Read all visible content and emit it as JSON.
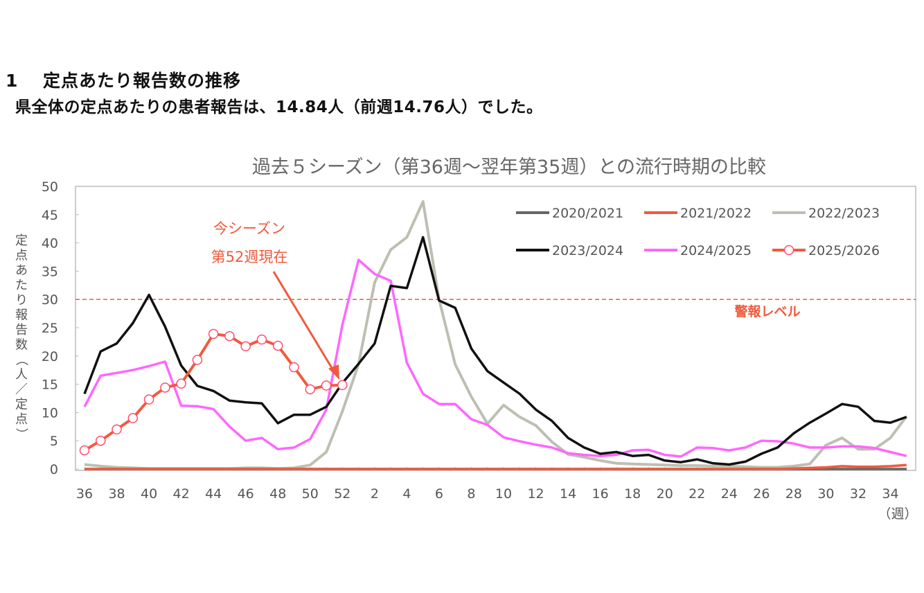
{
  "header": {
    "section_number": "1",
    "section_title": "定点あたり報告数の推移",
    "summary": "県全体の定点あたりの患者報告は、14.84人（前週14.76人）でした。"
  },
  "chart_data": {
    "type": "line",
    "title": "過去５シーズン（第36週～翌年第35週）との流行時期の比較",
    "ylabel": "定点あたり報告数（人／定点）",
    "xlabel": "（週）",
    "ylim": [
      0,
      50
    ],
    "yticks": [
      "0",
      "5",
      "10",
      "15",
      "20",
      "25",
      "30",
      "35",
      "40",
      "45",
      "50"
    ],
    "xticks": [
      "36",
      "38",
      "40",
      "42",
      "44",
      "46",
      "48",
      "50",
      "52",
      "2",
      "4",
      "6",
      "8",
      "10",
      "12",
      "14",
      "16",
      "18",
      "20",
      "22",
      "24",
      "26",
      "28",
      "30",
      "32",
      "34"
    ],
    "weeks": [
      36,
      37,
      38,
      39,
      40,
      41,
      42,
      43,
      44,
      45,
      46,
      47,
      48,
      49,
      50,
      51,
      52,
      1,
      2,
      3,
      4,
      5,
      6,
      7,
      8,
      9,
      10,
      11,
      12,
      13,
      14,
      15,
      16,
      17,
      18,
      19,
      20,
      21,
      22,
      23,
      24,
      25,
      26,
      27,
      28,
      29,
      30,
      31,
      32,
      33,
      34,
      35
    ],
    "grid": false,
    "legend_position": "top-right",
    "threshold": {
      "label": "警報レベル",
      "value": 30
    },
    "annotation": {
      "line1": "今シーズン",
      "line2": "第52週現在"
    },
    "series": [
      {
        "name": "2020/2021",
        "color": "#666666",
        "values": [
          0,
          0,
          0,
          0,
          0,
          0,
          0,
          0,
          0,
          0,
          0,
          0,
          0,
          0,
          0,
          0,
          0,
          0,
          0,
          0,
          0,
          0,
          0,
          0,
          0,
          0,
          0,
          0,
          0,
          0,
          0,
          0,
          0,
          0,
          0,
          0,
          0,
          0,
          0,
          0,
          0,
          0,
          0,
          0,
          0,
          0,
          0,
          0,
          0,
          0,
          0,
          0
        ]
      },
      {
        "name": "2021/2022",
        "color": "#f05a3c",
        "values": [
          0,
          0,
          0,
          0,
          0,
          0,
          0,
          0,
          0,
          0,
          0,
          0,
          0,
          0,
          0,
          0,
          0,
          0,
          0,
          0,
          0,
          0,
          0,
          0,
          0,
          0,
          0,
          0,
          0,
          0,
          0,
          0,
          0,
          0,
          0,
          0,
          0,
          0,
          0,
          0,
          0,
          0,
          0,
          0,
          0.1,
          0.2,
          0.3,
          0.5,
          0.4,
          0.4,
          0.5,
          0.7
        ]
      },
      {
        "name": "2022/2023",
        "color": "#bdbfb2",
        "values": [
          0.8,
          0.5,
          0.3,
          0.2,
          0.1,
          0.1,
          0.1,
          0.1,
          0.1,
          0.1,
          0.2,
          0.2,
          0.1,
          0.2,
          0.7,
          3.0,
          10.2,
          18.5,
          33.0,
          38.8,
          41.0,
          47.3,
          30.0,
          18.5,
          12.8,
          8.0,
          11.3,
          9.2,
          7.7,
          4.8,
          2.6,
          2.1,
          1.5,
          1.0,
          0.9,
          0.8,
          0.7,
          0.6,
          0.6,
          0.5,
          0.5,
          0.4,
          0.3,
          0.3,
          0.5,
          0.9,
          4.2,
          5.5,
          3.5,
          3.5,
          5.5,
          9.3
        ]
      },
      {
        "name": "2023/2024",
        "color": "#111111",
        "values": [
          13.3,
          20.8,
          22.2,
          25.8,
          30.8,
          25.2,
          18.3,
          14.7,
          13.8,
          12.1,
          11.8,
          11.6,
          8.1,
          9.6,
          9.6,
          11.0,
          15.2,
          18.6,
          22.2,
          32.4,
          32.0,
          41.0,
          29.8,
          28.5,
          21.3,
          17.3,
          15.3,
          13.3,
          10.5,
          8.5,
          5.5,
          3.8,
          2.7,
          3.0,
          2.3,
          2.5,
          1.5,
          1.2,
          1.7,
          1.0,
          0.8,
          1.3,
          2.7,
          3.8,
          6.3,
          8.2,
          9.8,
          11.5,
          11.0,
          8.5,
          8.2,
          9.2
        ]
      },
      {
        "name": "2024/2025",
        "color": "#ff66ff",
        "values": [
          11.0,
          16.5,
          17.0,
          17.5,
          18.2,
          19.0,
          11.2,
          11.1,
          10.6,
          7.5,
          5.0,
          5.5,
          3.5,
          3.8,
          5.3,
          10.5,
          25.5,
          37.0,
          34.5,
          33.3,
          18.8,
          13.3,
          11.5,
          11.5,
          8.8,
          7.8,
          5.6,
          4.9,
          4.3,
          3.8,
          2.8,
          2.5,
          2.3,
          2.5,
          3.3,
          3.4,
          2.5,
          2.2,
          3.8,
          3.7,
          3.3,
          3.8,
          5.0,
          4.9,
          4.5,
          3.8,
          3.8,
          4.0,
          4.0,
          3.7,
          3.0,
          2.3
        ]
      },
      {
        "name": "2025/2026",
        "color": "#f05a3c",
        "marker": "open-circle",
        "values": [
          3.3,
          5.0,
          7.0,
          9.0,
          12.3,
          14.4,
          15.1,
          19.3,
          23.9,
          23.5,
          21.7,
          22.9,
          21.8,
          18.0,
          14.1,
          14.76,
          14.84
        ]
      }
    ]
  }
}
